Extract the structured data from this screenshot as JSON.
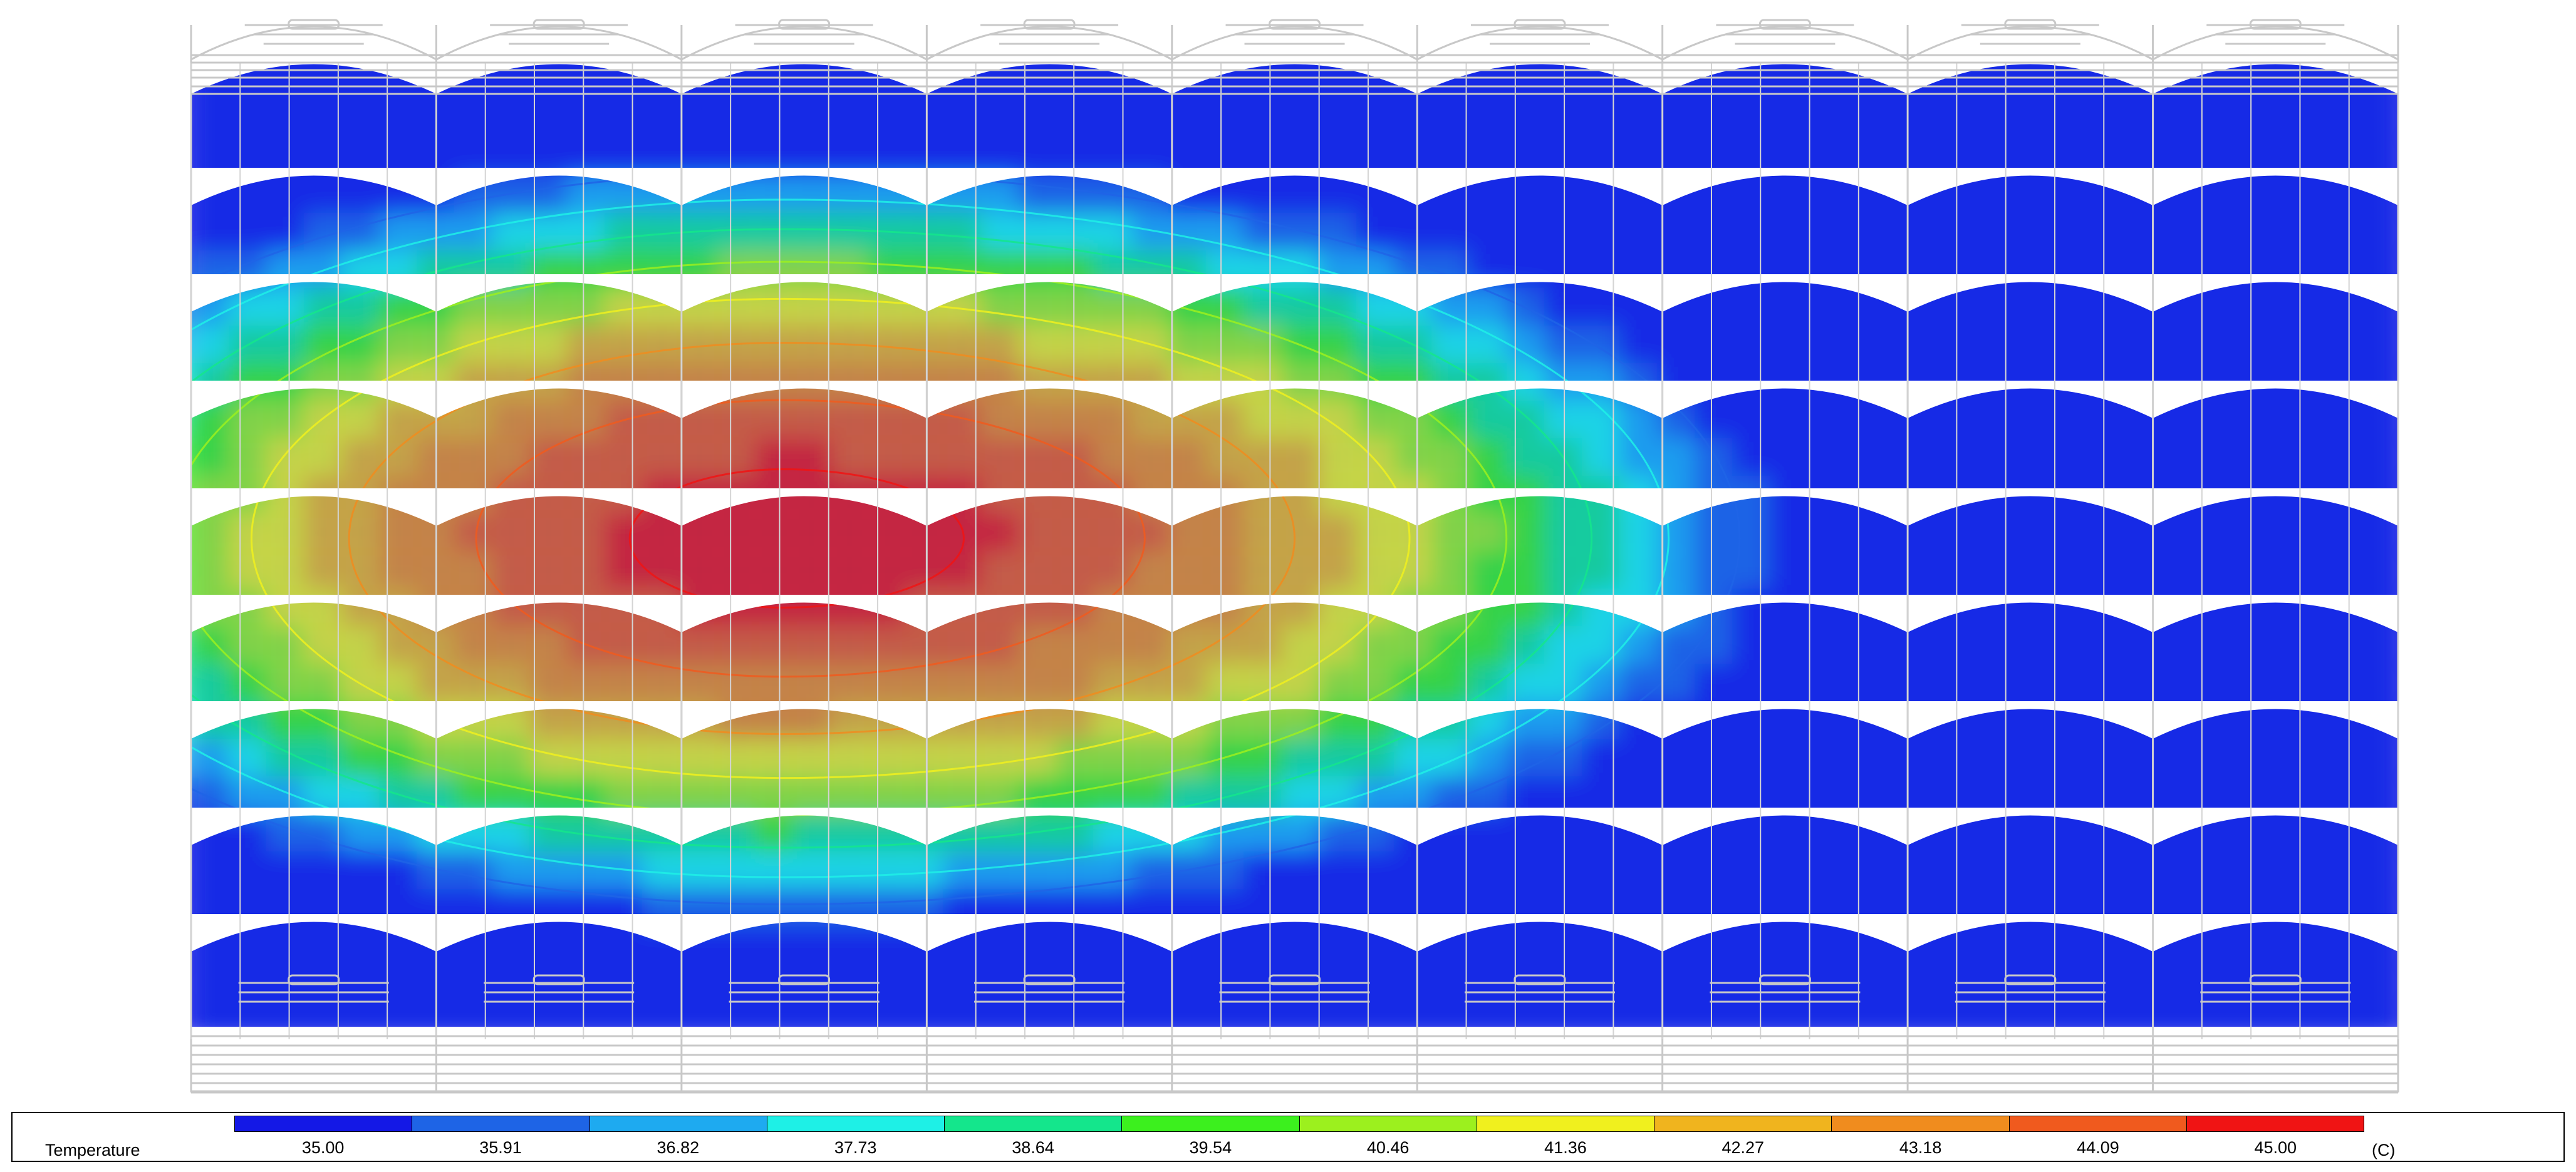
{
  "legend": {
    "title": "Temperature",
    "unit": "(C)",
    "labels": [
      "35.00",
      "35.91",
      "36.82",
      "37.73",
      "38.64",
      "39.54",
      "40.46",
      "41.36",
      "42.27",
      "43.18",
      "44.09",
      "45.00"
    ],
    "colors": [
      "#1418e6",
      "#1e64e6",
      "#1eaaf0",
      "#1ef0e6",
      "#14e68c",
      "#3cf01e",
      "#9cf01e",
      "#f0f01e",
      "#f0b41e",
      "#f08c1e",
      "#f05a1e",
      "#f01414"
    ]
  },
  "field": {
    "min": 35.0,
    "max": 45.0,
    "spans": 9,
    "rows": 9
  }
}
